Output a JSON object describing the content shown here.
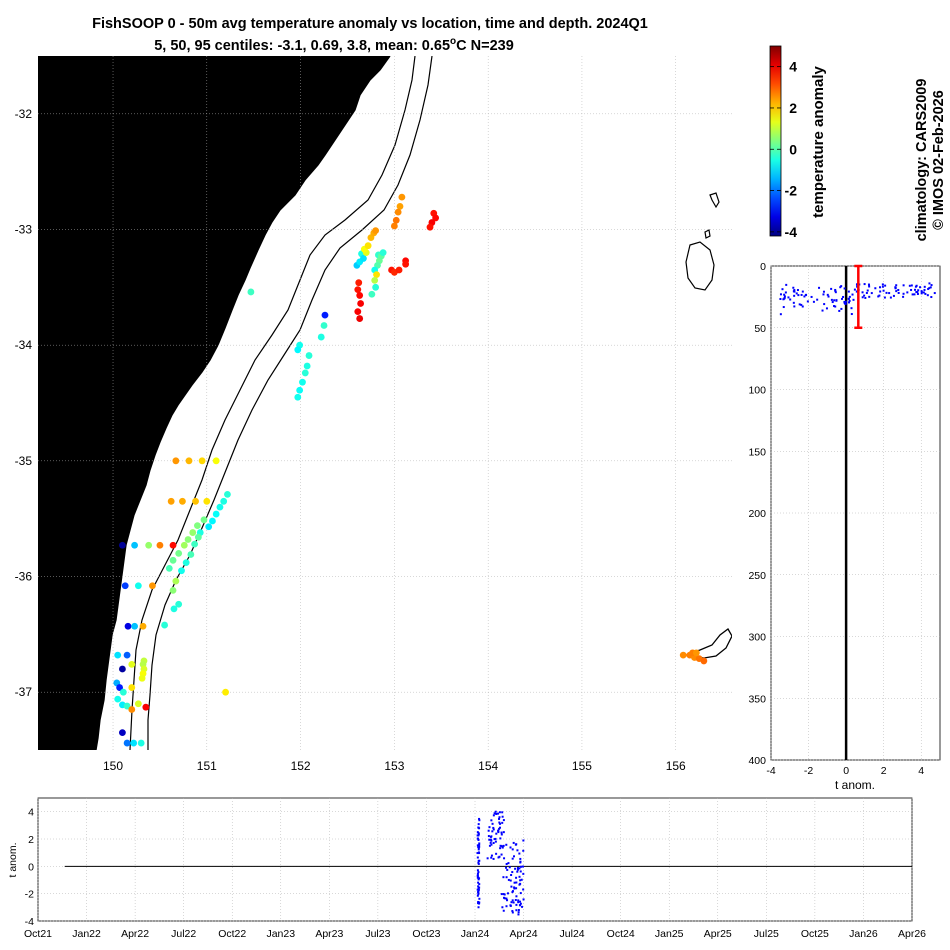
{
  "title": {
    "line1": "FishSOOP 0 - 50m avg temperature anomaly vs location, time and depth. 2024Q1",
    "line2_prefix": "5, 50, 95 centiles: -3.1, 0.69, 3.8, mean: 0.65",
    "line2_degree": "o",
    "line2_suffix": "C N=239"
  },
  "side_labels": {
    "climatology": "climatology: CARS2009",
    "copyright": "© IMOS 02-Feb-2026"
  },
  "colors": {
    "land": "#fdcf9b",
    "profile_points": "#0000ff",
    "mean_line": "#ff0000",
    "grid": "#b0b0b0"
  },
  "chart_data": [
    {
      "type": "scatter",
      "name": "map",
      "xlabel": "",
      "ylabel": "",
      "xlim": [
        149.2,
        156.6
      ],
      "ylim": [
        -37.5,
        -31.5
      ],
      "xticks": [
        150,
        151,
        152,
        153,
        154,
        155,
        156
      ],
      "yticks": [
        -32,
        -33,
        -34,
        -35,
        -36,
        -37
      ],
      "land_label": "",
      "points": [
        [
          151.47,
          -33.54,
          -0.2
        ],
        [
          152.26,
          -33.74,
          -2.8
        ],
        [
          152.25,
          -33.83,
          -0.3
        ],
        [
          152.22,
          -33.93,
          -0.5
        ],
        [
          151.99,
          -34.0,
          -0.6
        ],
        [
          151.97,
          -34.04,
          -0.8
        ],
        [
          152.09,
          -34.09,
          -0.4
        ],
        [
          152.07,
          -34.18,
          -0.5
        ],
        [
          152.05,
          -34.24,
          -0.4
        ],
        [
          152.02,
          -34.32,
          -0.6
        ],
        [
          151.99,
          -34.39,
          -0.7
        ],
        [
          151.97,
          -34.45,
          -0.6
        ],
        [
          152.65,
          -33.21,
          -0.5
        ],
        [
          152.6,
          -33.31,
          -1.2
        ],
        [
          152.63,
          -33.28,
          -0.9
        ],
        [
          152.67,
          -33.25,
          -1.0
        ],
        [
          152.7,
          -33.2,
          1.3
        ],
        [
          152.68,
          -33.17,
          1.5
        ],
        [
          152.72,
          -33.14,
          1.8
        ],
        [
          152.75,
          -33.07,
          2.2
        ],
        [
          152.78,
          -33.03,
          2.3
        ],
        [
          152.8,
          -33.01,
          2.5
        ],
        [
          152.83,
          -33.22,
          -0.3
        ],
        [
          152.84,
          -33.27,
          0.2
        ],
        [
          152.82,
          -33.31,
          0.0
        ],
        [
          152.79,
          -33.35,
          -0.6
        ],
        [
          152.81,
          -33.39,
          1.8
        ],
        [
          152.79,
          -33.44,
          0.9
        ],
        [
          152.8,
          -33.5,
          -0.4
        ],
        [
          152.76,
          -33.56,
          -0.2
        ],
        [
          152.86,
          -33.23,
          0.1
        ],
        [
          152.88,
          -33.2,
          -0.4
        ],
        [
          152.62,
          -33.46,
          3.6
        ],
        [
          152.61,
          -33.52,
          3.7
        ],
        [
          152.63,
          -33.57,
          3.8
        ],
        [
          152.64,
          -33.64,
          3.9
        ],
        [
          152.61,
          -33.71,
          3.9
        ],
        [
          152.63,
          -33.77,
          4.0
        ],
        [
          152.97,
          -33.35,
          3.7
        ],
        [
          153.0,
          -33.37,
          3.5
        ],
        [
          153.05,
          -33.35,
          3.6
        ],
        [
          153.12,
          -33.27,
          3.8
        ],
        [
          153.12,
          -33.3,
          3.7
        ],
        [
          153.06,
          -32.8,
          2.4
        ],
        [
          153.04,
          -32.85,
          2.6
        ],
        [
          153.02,
          -32.92,
          2.8
        ],
        [
          153.0,
          -32.97,
          2.7
        ],
        [
          153.08,
          -32.72,
          2.5
        ],
        [
          153.42,
          -32.86,
          3.7
        ],
        [
          153.44,
          -32.9,
          3.8
        ],
        [
          153.4,
          -32.94,
          3.9
        ],
        [
          153.38,
          -32.98,
          3.7
        ],
        [
          150.67,
          -35.0,
          2.5
        ],
        [
          150.81,
          -35.0,
          2.2
        ],
        [
          150.95,
          -35.0,
          1.9
        ],
        [
          151.1,
          -35.0,
          1.5
        ],
        [
          150.62,
          -35.35,
          2.4
        ],
        [
          150.74,
          -35.35,
          2.3
        ],
        [
          150.88,
          -35.35,
          2.1
        ],
        [
          151.0,
          -35.35,
          1.8
        ],
        [
          151.22,
          -35.29,
          -0.4
        ],
        [
          151.18,
          -35.35,
          -0.5
        ],
        [
          151.14,
          -35.4,
          -0.6
        ],
        [
          151.1,
          -35.46,
          -0.7
        ],
        [
          151.06,
          -35.52,
          -0.8
        ],
        [
          151.02,
          -35.57,
          -0.9
        ],
        [
          150.97,
          -35.51,
          0.3
        ],
        [
          150.9,
          -35.56,
          0.4
        ],
        [
          150.85,
          -35.62,
          0.6
        ],
        [
          150.8,
          -35.68,
          0.5
        ],
        [
          150.76,
          -35.73,
          0.7
        ],
        [
          150.7,
          -35.8,
          0.3
        ],
        [
          150.64,
          -35.86,
          0.2
        ],
        [
          150.6,
          -35.93,
          -0.1
        ],
        [
          150.93,
          -35.62,
          -0.5
        ],
        [
          150.91,
          -35.66,
          0.1
        ],
        [
          150.87,
          -35.72,
          -0.2
        ],
        [
          150.83,
          -35.81,
          -0.1
        ],
        [
          150.78,
          -35.88,
          -0.5
        ],
        [
          150.73,
          -35.95,
          -0.6
        ],
        [
          150.67,
          -36.04,
          0.8
        ],
        [
          150.64,
          -36.12,
          0.5
        ],
        [
          150.7,
          -36.24,
          -0.4
        ],
        [
          150.65,
          -36.28,
          -0.5
        ],
        [
          150.55,
          -36.42,
          -0.4
        ],
        [
          150.1,
          -35.73,
          -4.0
        ],
        [
          150.23,
          -35.73,
          -1.3
        ],
        [
          150.38,
          -35.73,
          0.6
        ],
        [
          150.5,
          -35.73,
          2.7
        ],
        [
          150.64,
          -35.73,
          3.8
        ],
        [
          150.13,
          -36.08,
          -2.5
        ],
        [
          150.27,
          -36.08,
          -0.6
        ],
        [
          150.42,
          -36.08,
          2.5
        ],
        [
          150.16,
          -36.43,
          -3.3
        ],
        [
          150.23,
          -36.43,
          -1.3
        ],
        [
          150.32,
          -36.43,
          2.3
        ],
        [
          150.15,
          -36.68,
          -2.2
        ],
        [
          150.05,
          -36.68,
          -1.0
        ],
        [
          150.2,
          -36.76,
          1.3
        ],
        [
          150.1,
          -36.8,
          -3.9
        ],
        [
          150.04,
          -36.92,
          -1.5
        ],
        [
          150.07,
          -36.96,
          -2.8
        ],
        [
          150.11,
          -37.0,
          -0.4
        ],
        [
          150.05,
          -37.06,
          -0.6
        ],
        [
          150.1,
          -37.11,
          -0.9
        ],
        [
          150.15,
          -37.12,
          -0.3
        ],
        [
          150.2,
          -37.15,
          2.6
        ],
        [
          150.27,
          -37.1,
          1.2
        ],
        [
          150.33,
          -36.73,
          1.0
        ],
        [
          150.32,
          -36.76,
          0.9
        ],
        [
          150.33,
          -36.8,
          1.2
        ],
        [
          150.32,
          -36.84,
          1.5
        ],
        [
          150.31,
          -36.88,
          1.4
        ],
        [
          150.35,
          -37.13,
          3.9
        ],
        [
          150.2,
          -36.96,
          1.8
        ],
        [
          150.1,
          -37.35,
          -3.6
        ],
        [
          150.15,
          -37.44,
          -2.0
        ],
        [
          150.22,
          -37.44,
          -1.0
        ],
        [
          150.3,
          -37.44,
          -0.5
        ],
        [
          151.2,
          -37.0,
          1.7
        ],
        [
          156.08,
          -36.68,
          2.6
        ],
        [
          156.15,
          -36.68,
          2.7
        ],
        [
          156.2,
          -36.7,
          2.6
        ],
        [
          156.25,
          -36.71,
          2.8
        ],
        [
          156.18,
          -36.66,
          2.7
        ],
        [
          156.22,
          -36.66,
          2.5
        ],
        [
          156.3,
          -36.73,
          2.9
        ]
      ],
      "colorbar": {
        "label": "temperature anomaly",
        "range": [
          -4.2,
          5.0
        ],
        "ticks": [
          4,
          2,
          0,
          -2,
          -4
        ]
      }
    },
    {
      "type": "scatter",
      "name": "depth-profile",
      "xlabel": "t anom.",
      "ylabel": "",
      "xlim": [
        -4,
        5
      ],
      "ylim": [
        400,
        0
      ],
      "xticks": [
        -4,
        -2,
        0,
        2,
        4
      ],
      "yticks": [
        0,
        50,
        100,
        150,
        200,
        250,
        300,
        350,
        400
      ],
      "mean": 0.65,
      "errorbar": [
        0,
        50
      ]
    },
    {
      "type": "scatter",
      "name": "time-series",
      "xlabel": "",
      "ylabel": "t anom.",
      "ylim": [
        -4,
        5
      ],
      "yticks": [
        4,
        2,
        0,
        -2,
        -4
      ],
      "xticks": [
        "Oct21",
        "Jan22",
        "Apr22",
        "Jul22",
        "Oct22",
        "Jan23",
        "Apr23",
        "Jul23",
        "Oct23",
        "Jan24",
        "Apr24",
        "Jul24",
        "Oct24",
        "Jan25",
        "Apr25",
        "Jul25",
        "Oct25",
        "Jan26",
        "Apr26"
      ]
    }
  ]
}
